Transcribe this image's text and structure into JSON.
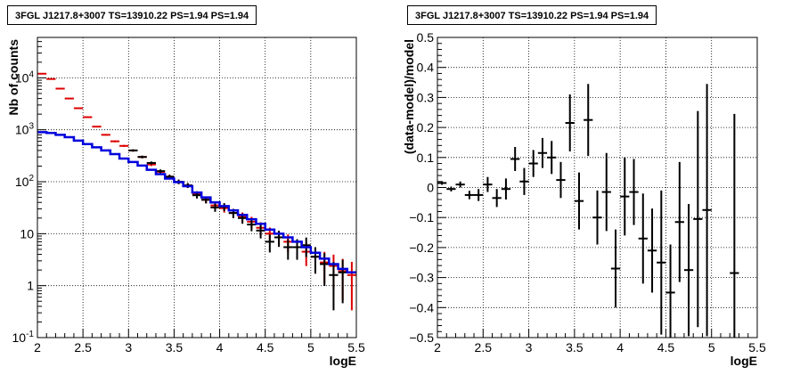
{
  "chart_data": [
    {
      "type": "step-histogram",
      "title": "3FGL J1217.8+3007 TS=13910.22 PS=1.94 PS=1.94",
      "xlabel": "logE",
      "ylabel": "Nb of counts",
      "xlim": [
        2,
        5.5
      ],
      "ylim": [
        0.1,
        60000
      ],
      "yscale": "log",
      "grid": true,
      "x_ticks": [
        "2",
        "2.5",
        "3",
        "3.5",
        "4",
        "4.5",
        "5",
        "5.5"
      ],
      "y_ticks": [
        {
          "label": "10",
          "sup": "-1",
          "value": 0.1
        },
        {
          "label": "1",
          "sup": "",
          "value": 1
        },
        {
          "label": "10",
          "sup": "",
          "value": 10
        },
        {
          "label": "10",
          "sup": "2",
          "value": 100
        },
        {
          "label": "10",
          "sup": "3",
          "value": 1000
        },
        {
          "label": "10",
          "sup": "4",
          "value": 10000
        }
      ],
      "colors": {
        "data": "#000000",
        "model_points": "#dd0000",
        "model_line": "#0000dd"
      },
      "x": [
        2.05,
        2.15,
        2.25,
        2.35,
        2.45,
        2.55,
        2.65,
        2.75,
        2.85,
        2.95,
        3.05,
        3.15,
        3.25,
        3.35,
        3.45,
        3.55,
        3.65,
        3.75,
        3.85,
        3.95,
        4.05,
        4.15,
        4.25,
        4.35,
        4.45,
        4.55,
        4.65,
        4.75,
        4.85,
        4.95,
        5.05,
        5.15,
        5.25,
        5.35,
        5.45
      ],
      "series": [
        {
          "role": "data",
          "x": [
            3.05,
            3.15,
            3.25,
            3.35,
            3.45,
            3.55,
            3.65,
            3.75,
            3.85,
            3.95,
            4.05,
            4.15,
            4.25,
            4.35,
            4.45,
            4.55,
            4.65,
            4.75,
            4.85,
            4.95,
            5.05,
            5.15,
            5.25,
            5.35
          ],
          "values": [
            400,
            300,
            230,
            160,
            125,
            100,
            85,
            55,
            45,
            32,
            33,
            25,
            20,
            15,
            11.5,
            7,
            8.5,
            5.5,
            5.5,
            6,
            3.6,
            2.6,
            1.6,
            1.8
          ]
        },
        {
          "role": "model_points",
          "values": [
            12000,
            9500,
            6200,
            4000,
            2600,
            1750,
            1150,
            800,
            600,
            490,
            400,
            300,
            215,
            155,
            125,
            100,
            85,
            58,
            45,
            35,
            31,
            25,
            21,
            17,
            13,
            10,
            8.5,
            7,
            5.5,
            4.5,
            3.6,
            2.8,
            2.4,
            1.9,
            1.6
          ]
        },
        {
          "role": "model_line",
          "values": [
            900,
            870,
            800,
            720,
            620,
            530,
            460,
            400,
            340,
            280,
            240,
            205,
            170,
            140,
            115,
            98,
            82,
            62,
            50,
            40,
            34,
            28,
            23,
            19,
            15.5,
            12,
            10,
            8.5,
            7,
            5.5,
            4.3,
            3.3,
            2.6,
            2.1,
            1.8
          ]
        }
      ]
    },
    {
      "type": "scatter",
      "title": "3FGL J1217.8+3007 TS=13910.22 PS=1.94 PS=1.94",
      "xlabel": "logE",
      "ylabel": "(data-model)/model",
      "xlim": [
        2,
        5.5
      ],
      "ylim": [
        -0.5,
        0.5
      ],
      "grid": true,
      "x_ticks": [
        "2",
        "2.5",
        "3",
        "3.5",
        "4",
        "4.5",
        "5",
        "5.5"
      ],
      "y_ticks": [
        "−0.5",
        "−0.4",
        "−0.3",
        "−0.2",
        "−0.1",
        "0",
        "0.1",
        "0.2",
        "0.3",
        "0.4",
        "0.5"
      ],
      "y_tick_values": [
        -0.5,
        -0.4,
        -0.3,
        -0.2,
        -0.1,
        0,
        0.1,
        0.2,
        0.3,
        0.4,
        0.5
      ],
      "x": [
        2.05,
        2.15,
        2.25,
        2.35,
        2.45,
        2.55,
        2.65,
        2.75,
        2.85,
        2.95,
        3.05,
        3.15,
        3.25,
        3.35,
        3.45,
        3.55,
        3.65,
        3.75,
        3.85,
        3.95,
        4.05,
        4.15,
        4.25,
        4.35,
        4.45,
        4.55,
        4.65,
        4.75,
        4.85,
        4.95,
        5.25
      ],
      "values": [
        0.015,
        -0.005,
        0.01,
        -0.025,
        -0.025,
        0.01,
        -0.035,
        -0.005,
        0.095,
        0.02,
        0.08,
        0.115,
        0.1,
        0.025,
        0.215,
        -0.045,
        0.225,
        -0.1,
        -0.015,
        -0.27,
        -0.03,
        -0.015,
        -0.17,
        -0.21,
        -0.25,
        -0.35,
        -0.115,
        -0.275,
        -0.105,
        -0.075,
        -0.285
      ],
      "errors": [
        0.006,
        0.008,
        0.01,
        0.014,
        0.02,
        0.025,
        0.03,
        0.035,
        0.04,
        0.045,
        0.045,
        0.05,
        0.055,
        0.06,
        0.095,
        0.095,
        0.12,
        0.09,
        0.13,
        0.13,
        0.13,
        0.11,
        0.15,
        0.14,
        0.24,
        0.16,
        0.2,
        0.22,
        0.36,
        0.42,
        0.53
      ]
    }
  ]
}
